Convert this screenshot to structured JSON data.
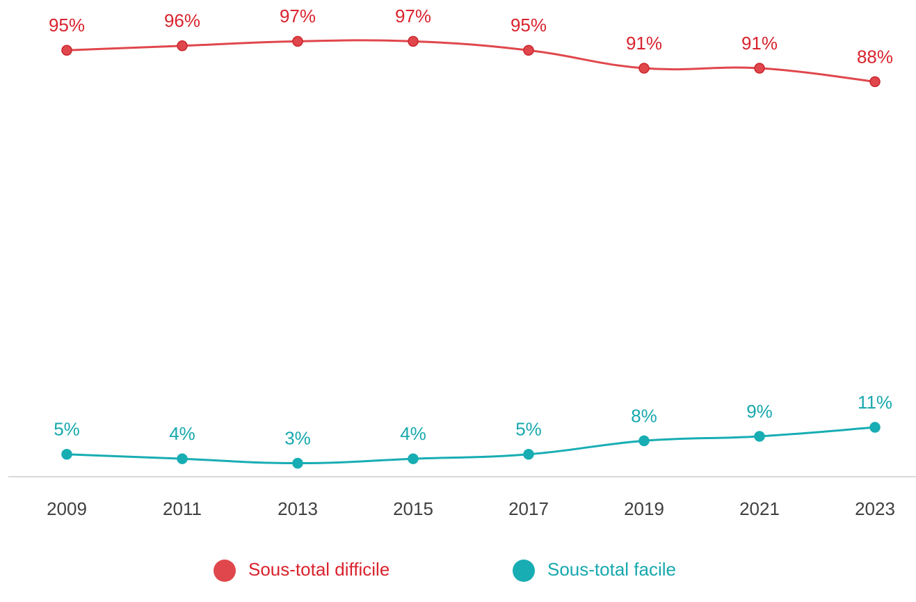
{
  "chart_data": {
    "type": "line",
    "categories": [
      "2009",
      "2011",
      "2013",
      "2015",
      "2017",
      "2019",
      "2021",
      "2023"
    ],
    "series": [
      {
        "name": "Sous-total difficile",
        "color": "#e0474c",
        "label_color": "#d9232d",
        "values": [
          95,
          96,
          97,
          97,
          95,
          91,
          91,
          88
        ],
        "value_labels": [
          "95%",
          "96%",
          "97%",
          "97%",
          "95%",
          "91%",
          "91%",
          "88%"
        ]
      },
      {
        "name": "Sous-total facile",
        "color": "#17adb3",
        "label_color": "#17a8ae",
        "values": [
          5,
          4,
          3,
          4,
          5,
          8,
          9,
          11
        ],
        "value_labels": [
          "5%",
          "4%",
          "3%",
          "4%",
          "5%",
          "8%",
          "9%",
          "11%"
        ]
      }
    ],
    "ylim": [
      0,
      100
    ],
    "legend": "bottom"
  }
}
